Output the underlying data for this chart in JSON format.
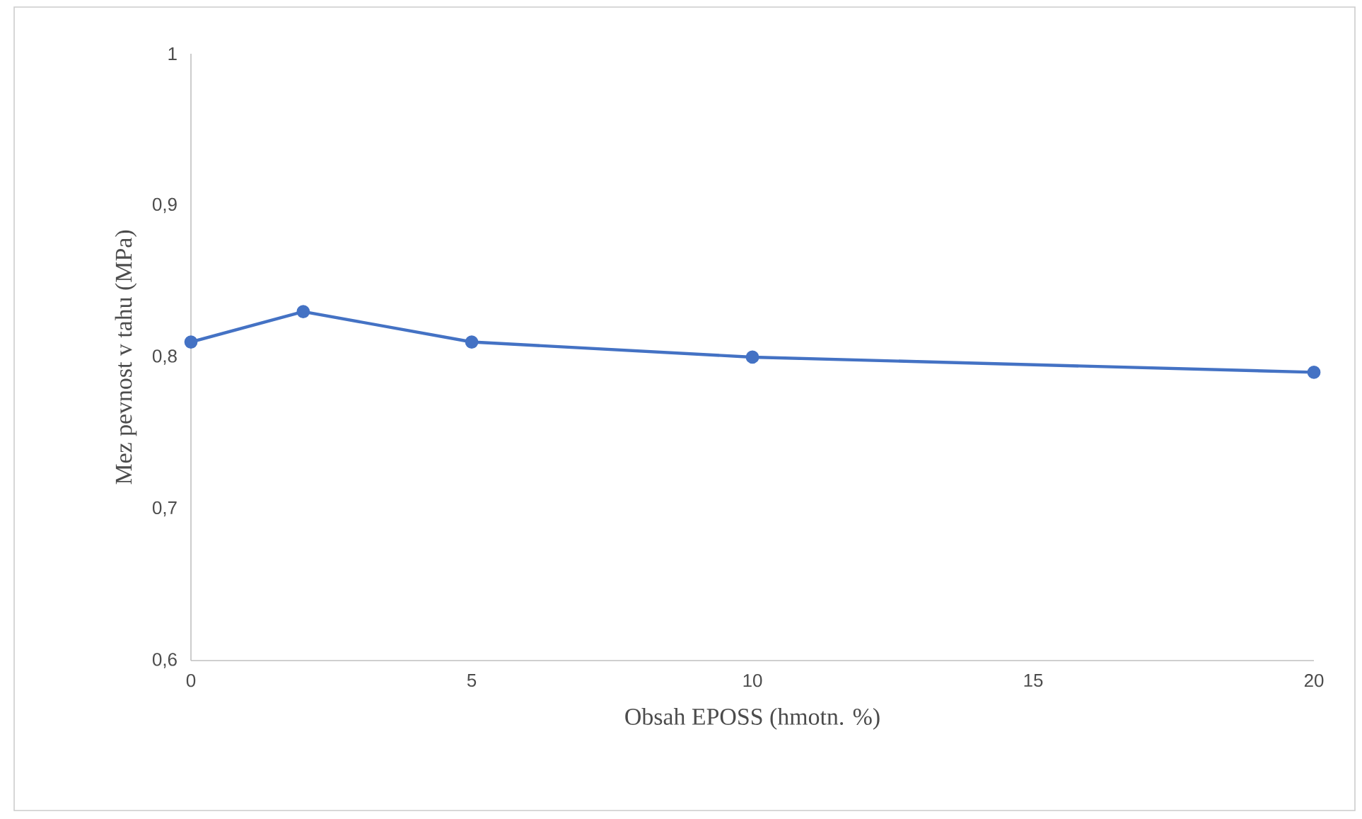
{
  "chart_data": {
    "type": "line",
    "xlabel": "Obsah EPOSS (hmotn. %)",
    "ylabel": "Mez pevnost v tahu (MPa)",
    "x": [
      0,
      2,
      5,
      10,
      20
    ],
    "series": [
      {
        "color": "#4472c4",
        "values": [
          0.81,
          0.83,
          0.81,
          0.8,
          0.79
        ]
      }
    ],
    "xlim": [
      0,
      20
    ],
    "xticks": [
      0,
      5,
      10,
      15,
      20
    ],
    "ylim": [
      0.6,
      1
    ],
    "yticks": [
      {
        "value": 0.6,
        "label": "0,6"
      },
      {
        "value": 0.7,
        "label": "0,7"
      },
      {
        "value": 0.8,
        "label": "0,8"
      },
      {
        "value": 0.9,
        "label": "0,9"
      },
      {
        "value": 1,
        "label": "1"
      }
    ],
    "grid": false,
    "marker": "circle",
    "line_style": "solid"
  }
}
